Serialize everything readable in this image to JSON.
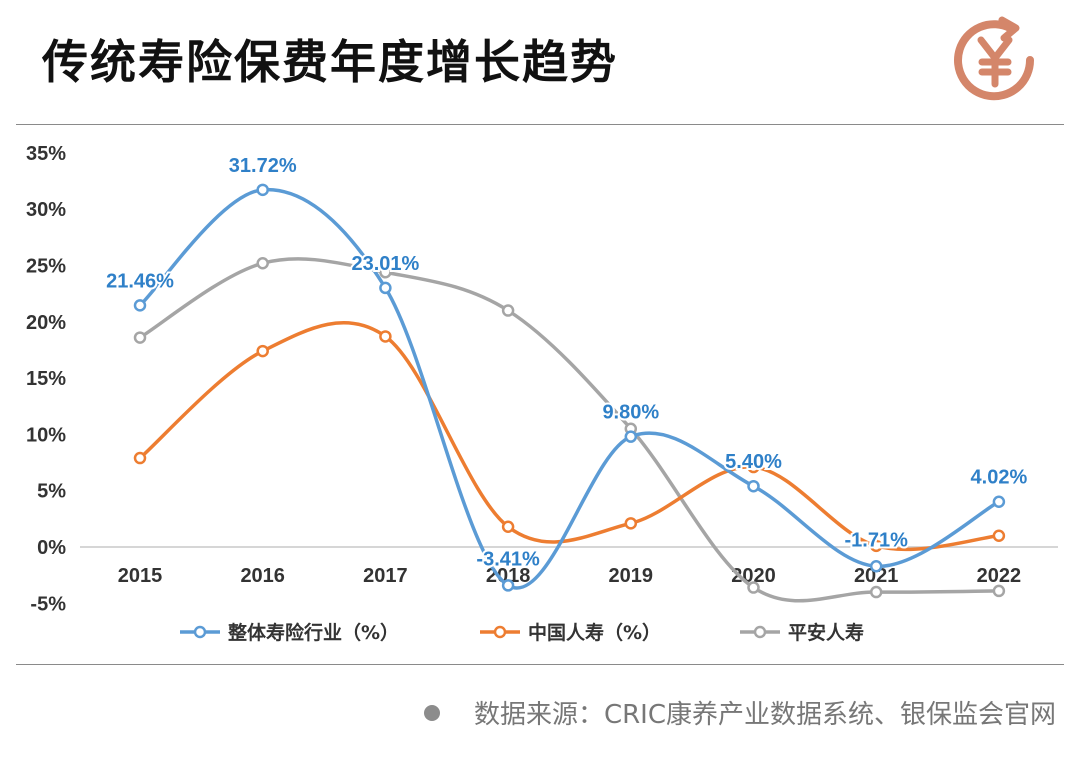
{
  "title": "传统寿险保费年度增长趋势",
  "logo_icon": "yuan-refresh-icon",
  "source_text": "数据来源：CRIC康养产业数据系统、银保监会官网",
  "colors": {
    "accent": "#d4866a",
    "series1": "#5b9bd5",
    "series2": "#ed7d31",
    "series3": "#a5a5a5",
    "label": "#2f80c8"
  },
  "chart_data": {
    "type": "line",
    "x": [
      "2015",
      "2016",
      "2017",
      "2018",
      "2019",
      "2020",
      "2021",
      "2022"
    ],
    "ylim": [
      -5,
      35
    ],
    "yticks": [
      "-5%",
      "0%",
      "5%",
      "10%",
      "15%",
      "20%",
      "25%",
      "30%",
      "35%"
    ],
    "grid": false,
    "legend": "bottom",
    "series": [
      {
        "name": "整体寿险行业（%）",
        "values": [
          21.46,
          31.72,
          23.01,
          -3.41,
          9.8,
          5.4,
          -1.71,
          4.02
        ],
        "labels": [
          "21.46%",
          "31.72%",
          "23.01%",
          "-3.41%",
          "9.80%",
          "5.40%",
          "-1.71%",
          "4.02%"
        ]
      },
      {
        "name": "中国人寿（%）",
        "values": [
          7.9,
          17.4,
          18.7,
          1.8,
          2.1,
          7.1,
          0.1,
          1.0
        ]
      },
      {
        "name": "平安人寿",
        "values": [
          18.6,
          25.2,
          24.4,
          21.0,
          10.5,
          -3.6,
          -4.0,
          -3.9
        ]
      }
    ]
  }
}
